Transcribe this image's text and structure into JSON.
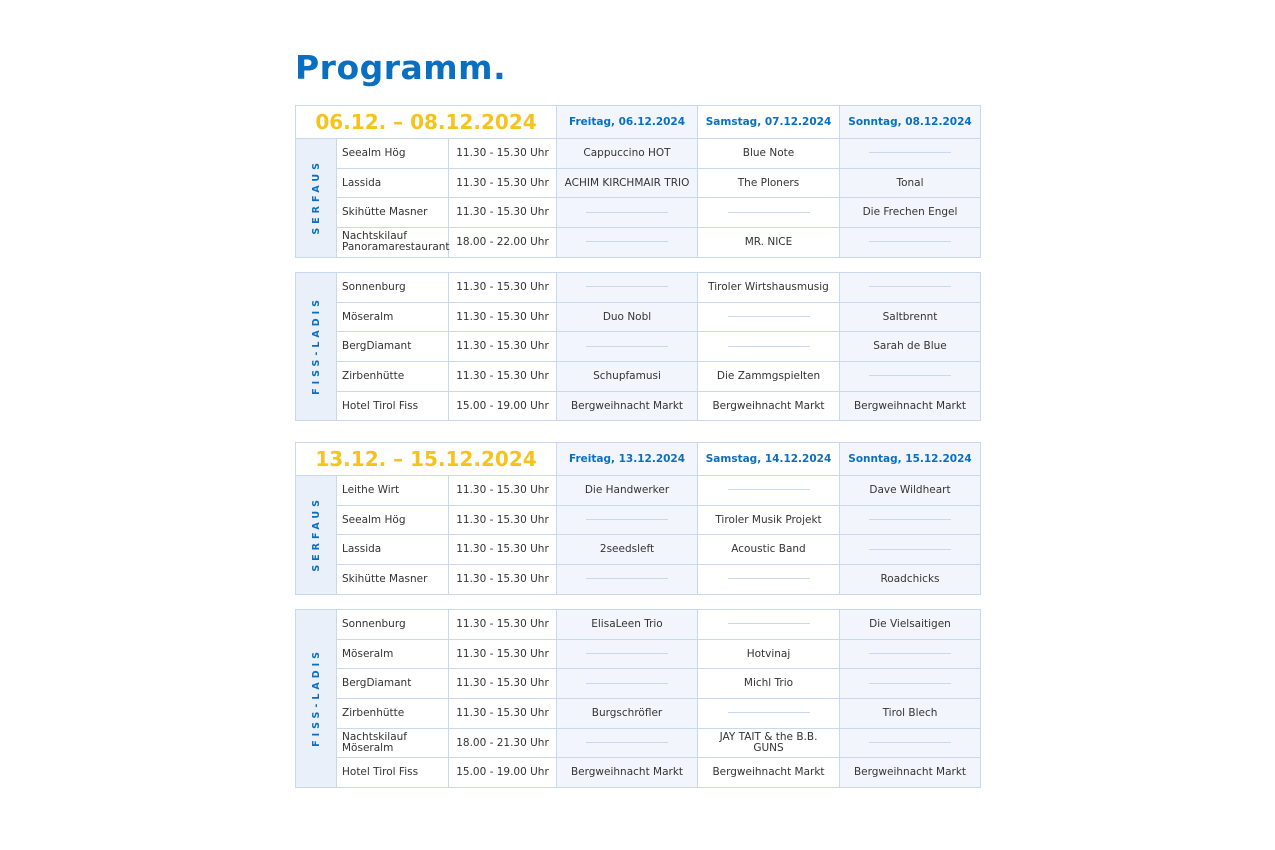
{
  "title": "Programm.",
  "weekends": [
    {
      "range": "06.12. – 08.12.2024",
      "days": [
        "Freitag, 06.12.2024",
        "Samstag, 07.12.2024",
        "Sonntag, 08.12.2024"
      ],
      "regions": [
        {
          "name": "SERFAUS",
          "rows": [
            {
              "venue": "Seealm Hög",
              "time": "11.30 - 15.30 Uhr",
              "acts": [
                "Cappuccino HOT",
                "Blue Note",
                ""
              ]
            },
            {
              "venue": "Lassida",
              "time": "11.30 - 15.30 Uhr",
              "acts": [
                "ACHIM KIRCHMAIR TRIO",
                "The Ploners",
                "Tonal"
              ]
            },
            {
              "venue": "Skihütte Masner",
              "time": "11.30 - 15.30 Uhr",
              "acts": [
                "",
                "",
                "Die Frechen Engel"
              ]
            },
            {
              "venue": "Nachtskilauf Panoramarestaurant",
              "time": "18.00 - 22.00 Uhr",
              "acts": [
                "",
                "MR. NICE",
                ""
              ]
            }
          ]
        },
        {
          "name": "FISS-LADIS",
          "rows": [
            {
              "venue": "Sonnenburg",
              "time": "11.30 - 15.30 Uhr",
              "acts": [
                "",
                "Tiroler Wirtshausmusig",
                ""
              ]
            },
            {
              "venue": "Möseralm",
              "time": "11.30 - 15.30 Uhr",
              "acts": [
                "Duo Nobl",
                "",
                "Saltbrennt"
              ]
            },
            {
              "venue": "BergDiamant",
              "time": "11.30 - 15.30 Uhr",
              "acts": [
                "",
                "",
                "Sarah de Blue"
              ]
            },
            {
              "venue": "Zirbenhütte",
              "time": "11.30 - 15.30 Uhr",
              "acts": [
                "Schupfamusi",
                "Die Zammgspielten",
                ""
              ]
            },
            {
              "venue": "Hotel Tirol Fiss",
              "time": "15.00 - 19.00 Uhr",
              "acts": [
                "Bergweihnacht Markt",
                "Bergweihnacht Markt",
                "Bergweihnacht Markt"
              ]
            }
          ]
        }
      ]
    },
    {
      "range": "13.12. – 15.12.2024",
      "days": [
        "Freitag, 13.12.2024",
        "Samstag, 14.12.2024",
        "Sonntag, 15.12.2024"
      ],
      "regions": [
        {
          "name": "SERFAUS",
          "rows": [
            {
              "venue": "Leithe Wirt",
              "time": "11.30 - 15.30 Uhr",
              "acts": [
                "Die Handwerker",
                "",
                "Dave Wildheart"
              ]
            },
            {
              "venue": "Seealm Hög",
              "time": "11.30 - 15.30 Uhr",
              "acts": [
                "",
                "Tiroler Musik Projekt",
                ""
              ]
            },
            {
              "venue": "Lassida",
              "time": "11.30 - 15.30 Uhr",
              "acts": [
                "2seedsleft",
                "Acoustic Band",
                ""
              ]
            },
            {
              "venue": "Skihütte Masner",
              "time": "11.30 - 15.30 Uhr",
              "acts": [
                "",
                "",
                "Roadchicks"
              ]
            }
          ]
        },
        {
          "name": "FISS-LADIS",
          "rows": [
            {
              "venue": "Sonnenburg",
              "time": "11.30 - 15.30 Uhr",
              "acts": [
                "ElisaLeen Trio",
                "",
                "Die Vielsaitigen"
              ]
            },
            {
              "venue": "Möseralm",
              "time": "11.30 - 15.30 Uhr",
              "acts": [
                "",
                "Hotvinaj",
                ""
              ]
            },
            {
              "venue": "BergDiamant",
              "time": "11.30 - 15.30 Uhr",
              "acts": [
                "",
                "Michl Trio",
                ""
              ]
            },
            {
              "venue": "Zirbenhütte",
              "time": "11.30 - 15.30 Uhr",
              "acts": [
                "Burgschröfler",
                "",
                "Tirol Blech"
              ]
            },
            {
              "venue": "Nachtskilauf Möseralm",
              "time": "18.00 - 21.30 Uhr",
              "acts": [
                "",
                "JAY TAIT & the B.B. GUNS",
                ""
              ]
            },
            {
              "venue": "Hotel Tirol Fiss",
              "time": "15.00 - 19.00 Uhr",
              "acts": [
                "Bergweihnacht Markt",
                "Bergweihnacht Markt",
                "Bergweihnacht Markt"
              ]
            }
          ]
        }
      ]
    }
  ]
}
